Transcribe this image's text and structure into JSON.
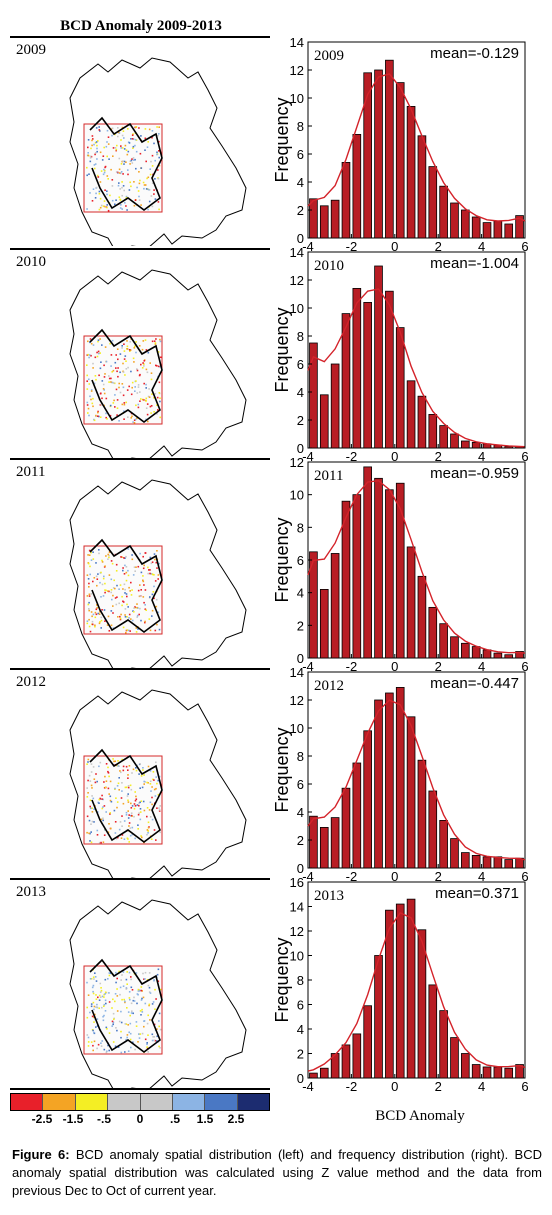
{
  "title": "BCD Anomaly 2009-2013",
  "colors": {
    "bar": "#b81d24",
    "curve": "#d4232a",
    "rect": "#d42a2a",
    "colorbar": [
      "#e8202a",
      "#f4a424",
      "#f4ee24",
      "#c8c8c8",
      "#c8c8c8",
      "#8cb4e4",
      "#4a78c4",
      "#1c2c70"
    ]
  },
  "colorbar_labels": [
    "-2.5",
    "-1.5",
    "-.5",
    "0",
    ".5",
    "1.5",
    "2.5"
  ],
  "map_years": [
    "2009",
    "2010",
    "2011",
    "2012",
    "2013"
  ],
  "chart_data": [
    {
      "type": "bar",
      "year": "2009",
      "mean_label": "mean=-0.129",
      "x": [
        -3.75,
        -3.25,
        -2.75,
        -2.25,
        -1.75,
        -1.25,
        -0.75,
        -0.25,
        0.25,
        0.75,
        1.25,
        1.75,
        2.25,
        2.75,
        3.25,
        3.75,
        4.25,
        4.75,
        5.25,
        5.75
      ],
      "values": [
        2.8,
        2.3,
        2.7,
        5.4,
        7.4,
        11.8,
        12.0,
        12.7,
        11.1,
        9.4,
        7.3,
        5.1,
        3.7,
        2.5,
        2.0,
        1.5,
        1.1,
        1.2,
        1.0,
        1.6
      ],
      "ylim": [
        0,
        14
      ],
      "yticks": [
        0,
        2,
        4,
        6,
        8,
        10,
        12,
        14
      ],
      "xlim": [
        -4,
        6
      ],
      "xticks": [
        -4,
        -2,
        0,
        2,
        4,
        6
      ],
      "ylabel": "Frequency"
    },
    {
      "type": "bar",
      "year": "2010",
      "mean_label": "mean=-1.004",
      "x": [
        -3.75,
        -3.25,
        -2.75,
        -2.25,
        -1.75,
        -1.25,
        -0.75,
        -0.25,
        0.25,
        0.75,
        1.25,
        1.75,
        2.25,
        2.75,
        3.25,
        3.75,
        4.25,
        4.75,
        5.25,
        5.75
      ],
      "values": [
        7.5,
        3.8,
        6.0,
        9.6,
        11.4,
        10.4,
        13.0,
        11.2,
        8.6,
        4.8,
        3.7,
        2.4,
        1.6,
        1.0,
        0.5,
        0.4,
        0.3,
        0.2,
        0.1,
        0.1
      ],
      "ylim": [
        0,
        14
      ],
      "yticks": [
        0,
        2,
        4,
        6,
        8,
        10,
        12,
        14
      ],
      "xlim": [
        -4,
        6
      ],
      "xticks": [
        -4,
        -2,
        0,
        2,
        4,
        6
      ],
      "ylabel": "Frequency"
    },
    {
      "type": "bar",
      "year": "2011",
      "mean_label": "mean=-0.959",
      "x": [
        -3.75,
        -3.25,
        -2.75,
        -2.25,
        -1.75,
        -1.25,
        -0.75,
        -0.25,
        0.25,
        0.75,
        1.25,
        1.75,
        2.25,
        2.75,
        3.25,
        3.75,
        4.25,
        4.75,
        5.25,
        5.75
      ],
      "values": [
        6.5,
        4.2,
        6.4,
        9.6,
        10.0,
        11.7,
        11.0,
        10.3,
        10.7,
        6.8,
        5.0,
        3.1,
        2.1,
        1.3,
        0.9,
        0.7,
        0.5,
        0.3,
        0.2,
        0.4
      ],
      "ylim": [
        0,
        12
      ],
      "yticks": [
        0,
        2,
        4,
        6,
        8,
        10,
        12
      ],
      "xlim": [
        -4,
        6
      ],
      "xticks": [
        -4,
        -2,
        0,
        2,
        4,
        6
      ],
      "ylabel": "Frequency"
    },
    {
      "type": "bar",
      "year": "2012",
      "mean_label": "mean=-0.447",
      "x": [
        -3.75,
        -3.25,
        -2.75,
        -2.25,
        -1.75,
        -1.25,
        -0.75,
        -0.25,
        0.25,
        0.75,
        1.25,
        1.75,
        2.25,
        2.75,
        3.25,
        3.75,
        4.25,
        4.75,
        5.25,
        5.75
      ],
      "values": [
        3.7,
        2.9,
        3.6,
        5.7,
        7.5,
        9.8,
        12.0,
        12.5,
        12.9,
        10.8,
        7.7,
        5.5,
        3.4,
        2.1,
        1.1,
        0.9,
        0.8,
        0.8,
        0.6,
        0.7
      ],
      "ylim": [
        0,
        14
      ],
      "yticks": [
        0,
        2,
        4,
        6,
        8,
        10,
        12,
        14
      ],
      "xlim": [
        -4,
        6
      ],
      "xticks": [
        -4,
        -2,
        0,
        2,
        4,
        6
      ],
      "ylabel": "Frequency"
    },
    {
      "type": "bar",
      "year": "2013",
      "mean_label": "mean=0.371",
      "x": [
        -3.75,
        -3.25,
        -2.75,
        -2.25,
        -1.75,
        -1.25,
        -0.75,
        -0.25,
        0.25,
        0.75,
        1.25,
        1.75,
        2.25,
        2.75,
        3.25,
        3.75,
        4.25,
        4.75,
        5.25,
        5.75
      ],
      "values": [
        0.4,
        0.8,
        2.0,
        2.7,
        3.6,
        5.9,
        10.0,
        13.7,
        14.2,
        14.6,
        12.1,
        7.6,
        5.5,
        3.3,
        2.0,
        1.1,
        0.9,
        0.9,
        0.8,
        1.1
      ],
      "ylim": [
        0,
        16
      ],
      "yticks": [
        0,
        2,
        4,
        6,
        8,
        10,
        12,
        14,
        16
      ],
      "xlim": [
        -4,
        6
      ],
      "xticks": [
        -4,
        -2,
        0,
        2,
        4,
        6
      ],
      "ylabel": "Frequency"
    }
  ],
  "xlabel": "BCD Anomaly",
  "caption": {
    "label": "Figure 6:",
    "text": " BCD anomaly spatial distribution (left) and frequency distribution (right). BCD anomaly spatial distribution was calculated using Z value method and the data from previous Dec to Oct of current year."
  }
}
